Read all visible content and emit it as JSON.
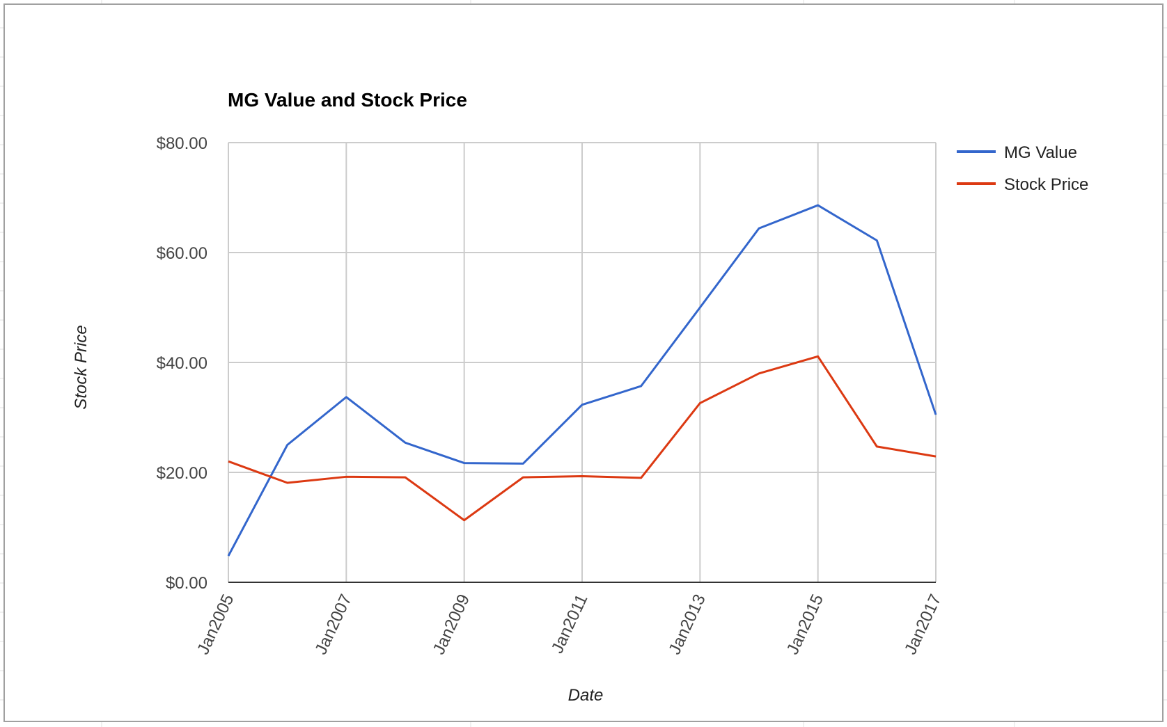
{
  "chart_data": {
    "type": "line",
    "title": "MG Value and Stock Price",
    "xlabel": "Date",
    "ylabel": "Stock Price",
    "x": [
      "Jan2005",
      "Jan2006",
      "Jan2007",
      "Jan2008",
      "Jan2009",
      "Jan2010",
      "Jan2011",
      "Jan2012",
      "Jan2013",
      "Jan2014",
      "Jan2015",
      "Jan2016",
      "Jan2017"
    ],
    "x_tick_labels": [
      "Jan2005",
      "Jan2007",
      "Jan2009",
      "Jan2011",
      "Jan2013",
      "Jan2015",
      "Jan2017"
    ],
    "y_tick_labels": [
      "$0.00",
      "$20.00",
      "$40.00",
      "$60.00",
      "$80.00"
    ],
    "ylim": [
      0,
      80
    ],
    "grid": true,
    "legend_position": "right",
    "series": [
      {
        "name": "MG Value",
        "color": "#3366cc",
        "values": [
          4.8,
          25.0,
          33.7,
          25.4,
          21.7,
          21.6,
          32.3,
          35.7,
          50.0,
          64.4,
          68.6,
          62.2,
          30.5
        ]
      },
      {
        "name": "Stock Price",
        "color": "#dc3912",
        "values": [
          22.0,
          18.1,
          19.2,
          19.1,
          11.3,
          19.1,
          19.3,
          19.0,
          32.6,
          38.0,
          41.1,
          24.7,
          22.9
        ]
      }
    ]
  }
}
